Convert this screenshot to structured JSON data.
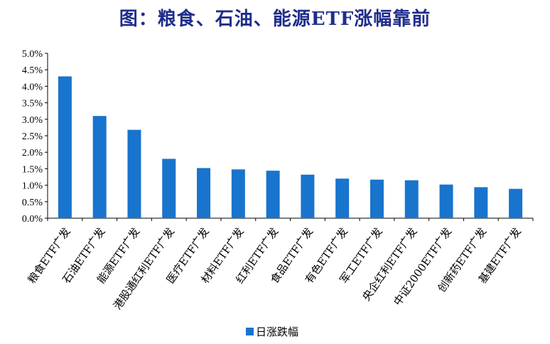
{
  "chart_data": {
    "type": "bar",
    "title": "图：粮食、石油、能源ETF涨幅靠前",
    "categories": [
      "粮食ETF广发",
      "石油ETF广发",
      "能源ETF广发",
      "港股通红利ETF广发",
      "医疗ETF广发",
      "材料ETF广发",
      "红利ETF广发",
      "食品ETF广发",
      "有色ETF广发",
      "军工ETF广发",
      "央企红利ETF广发",
      "中证2000ETF广发",
      "创新药ETF广发",
      "基建ETF广发"
    ],
    "series": [
      {
        "name": "日涨跌幅",
        "values": [
          4.3,
          3.1,
          2.68,
          1.8,
          1.52,
          1.48,
          1.44,
          1.32,
          1.2,
          1.17,
          1.15,
          1.02,
          0.94,
          0.89
        ],
        "color": "#1874cd"
      }
    ],
    "yticks": [
      "0.0%",
      "0.5%",
      "1.0%",
      "1.5%",
      "2.0%",
      "2.5%",
      "3.0%",
      "3.5%",
      "4.0%",
      "4.5%",
      "5.0%"
    ],
    "ylim": [
      0,
      5.0
    ],
    "ylabel": "",
    "xlabel": "",
    "grid": false,
    "legend": "bottom"
  }
}
